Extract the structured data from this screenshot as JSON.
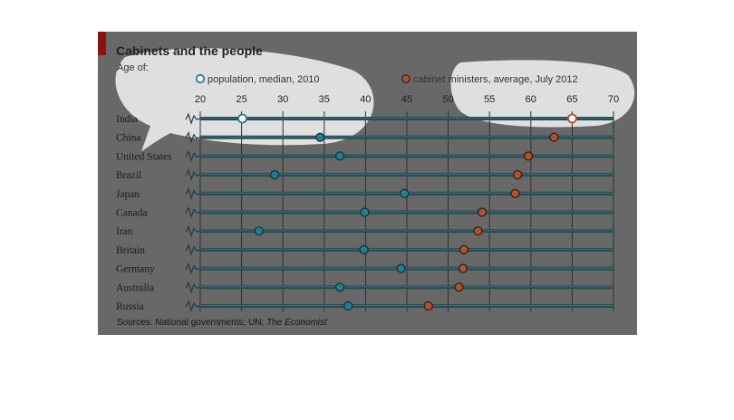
{
  "chart": {
    "title": "Cabinets and the people",
    "subtitle": "Age of:",
    "source_prefix": "Sources: National governments; UN; ",
    "source_publication": "The Economist"
  },
  "colors": {
    "panel": "#686868",
    "accent_red": "#8e1013",
    "population_marker": "#1f7f8e",
    "cabinet_marker": "#b4502f",
    "highlight_fill": "#f2f2f2"
  },
  "chart_data": {
    "type": "dot-plot",
    "title": "Cabinets and the people",
    "subtitle": "Age of:",
    "categories": [
      "India",
      "China",
      "United States",
      "Brazil",
      "Japan",
      "Canada",
      "Iran",
      "Britain",
      "Germany",
      "Australia",
      "Russia"
    ],
    "series": [
      {
        "name": "population, median, 2010",
        "values": [
          25.1,
          34.5,
          36.9,
          29.0,
          44.7,
          39.9,
          27.1,
          39.8,
          44.3,
          36.9,
          37.9
        ]
      },
      {
        "name": "cabinet ministers, average, July 2012",
        "values": [
          65.0,
          62.8,
          59.7,
          58.4,
          58.1,
          54.1,
          53.6,
          51.9,
          51.8,
          51.3,
          47.6
        ]
      }
    ],
    "xticks": [
      20,
      25,
      30,
      35,
      40,
      45,
      50,
      55,
      60,
      65,
      70
    ],
    "xlim": [
      20,
      70
    ],
    "axis_position": "top",
    "grid": true,
    "legend_position": "top"
  }
}
